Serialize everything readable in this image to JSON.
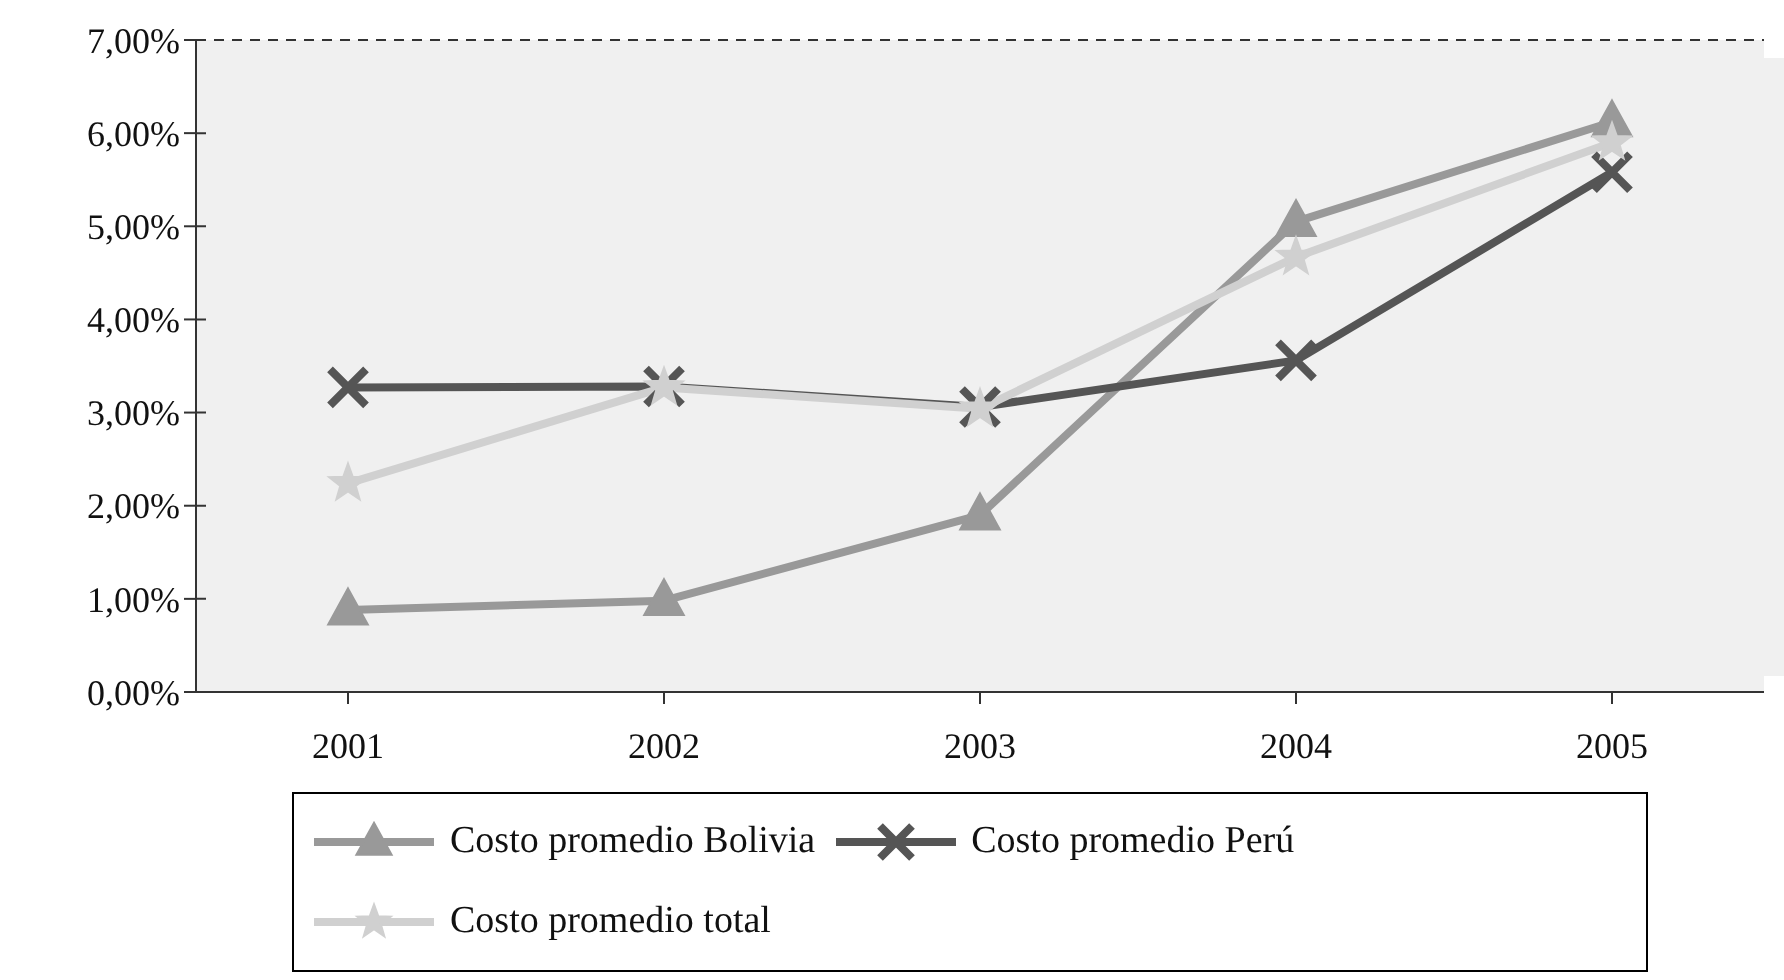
{
  "chart_data": {
    "type": "line",
    "categories": [
      "2001",
      "2002",
      "2003",
      "2004",
      "2005"
    ],
    "series": [
      {
        "name": "Costo promedio Bolivia",
        "color": "#999999",
        "marker": "triangle",
        "values": [
          0.88,
          0.98,
          1.9,
          5.05,
          6.12
        ]
      },
      {
        "name": "Costo promedio Perú",
        "color": "#555555",
        "marker": "cross",
        "values": [
          3.27,
          3.28,
          3.06,
          3.56,
          5.58
        ]
      },
      {
        "name": "Costo promedio total",
        "color": "#d0d0d0",
        "marker": "star",
        "values": [
          2.24,
          3.27,
          3.04,
          4.67,
          5.9
        ]
      }
    ],
    "ylim": [
      0,
      7
    ],
    "yticks": [
      {
        "value": 0,
        "label": "0,00%"
      },
      {
        "value": 1,
        "label": "1,00%"
      },
      {
        "value": 2,
        "label": "2,00%"
      },
      {
        "value": 3,
        "label": "3,00%"
      },
      {
        "value": 4,
        "label": "4,00%"
      },
      {
        "value": 5,
        "label": "5,00%"
      },
      {
        "value": 6,
        "label": "6,00%"
      },
      {
        "value": 7,
        "label": "7,00%"
      }
    ],
    "grid": "y",
    "legend": "bottom"
  }
}
